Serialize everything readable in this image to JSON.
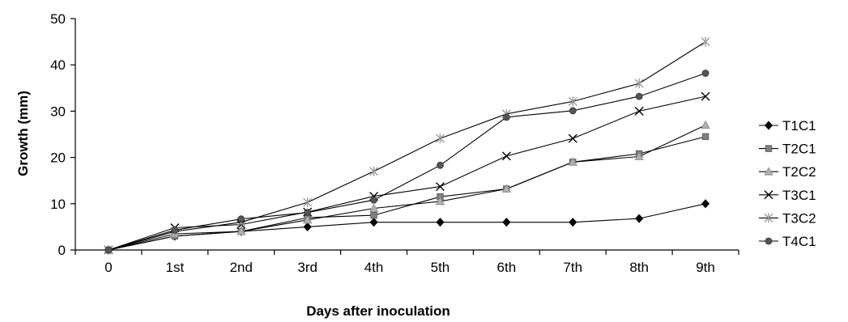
{
  "chart_data": {
    "type": "line",
    "categories": [
      "0",
      "1st",
      "2nd",
      "3rd",
      "4th",
      "5th",
      "6th",
      "7th",
      "8th",
      "9th"
    ],
    "xlabel": "Days after inoculation",
    "ylabel": "Growth (mm)",
    "ylim": [
      0,
      50
    ],
    "yticks": [
      0,
      10,
      20,
      30,
      40,
      50
    ],
    "grid": false,
    "legend_position": "right",
    "series": [
      {
        "name": "T1C1",
        "color": "#000000",
        "marker": "diamond",
        "values": [
          0,
          3,
          4,
          5,
          6,
          6,
          6,
          6,
          6.8,
          10
        ]
      },
      {
        "name": "T2C1",
        "color": "#808080",
        "marker": "square",
        "values": [
          0,
          3,
          4,
          7,
          7.5,
          11.5,
          13.2,
          19,
          20.8,
          24.5
        ]
      },
      {
        "name": "T2C2",
        "color": "#b0b0b0",
        "marker": "triangle",
        "values": [
          0,
          3.5,
          4,
          6.5,
          9,
          10.5,
          13.2,
          19,
          20.2,
          27
        ]
      },
      {
        "name": "T3C1",
        "color": "#000000",
        "marker": "x",
        "values": [
          0,
          4.8,
          5.5,
          8.2,
          11.6,
          13.7,
          20.3,
          24.1,
          30,
          33.2
        ]
      },
      {
        "name": "T3C2",
        "color": "#999999",
        "marker": "star",
        "values": [
          0,
          4,
          6,
          10.3,
          17,
          24.1,
          29.4,
          32.1,
          36,
          45
        ]
      },
      {
        "name": "T4C1",
        "color": "#555555",
        "marker": "circle",
        "values": [
          0,
          4.3,
          6.7,
          8.1,
          10.8,
          18.3,
          28.7,
          30.1,
          33.2,
          38.2
        ]
      }
    ]
  }
}
